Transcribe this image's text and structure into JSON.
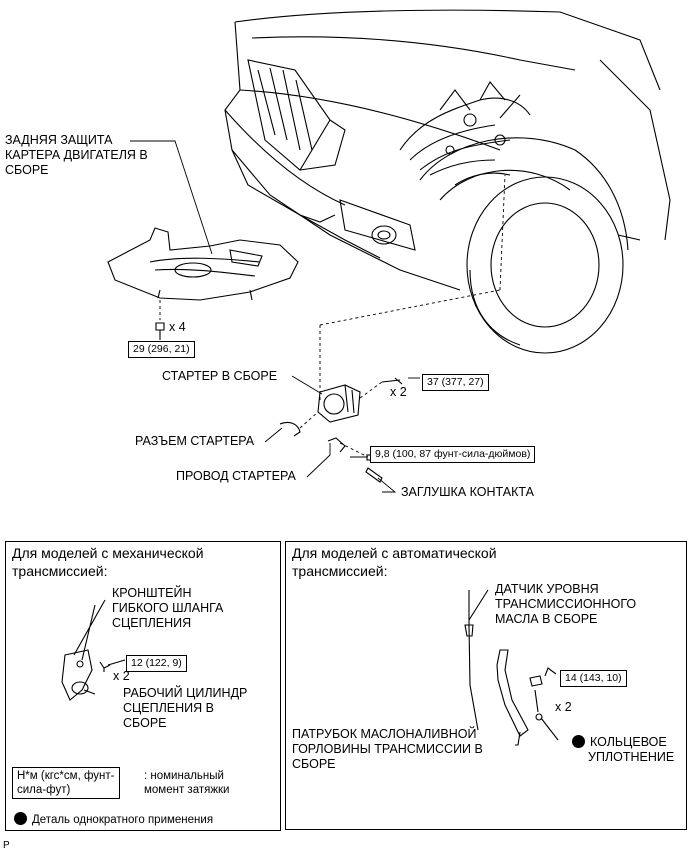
{
  "labels": {
    "rear_cover_l1": "ЗАДНЯЯ ЗАЩИТА",
    "rear_cover_l2": "КАРТЕРА ДВИГАТЕЛЯ В",
    "rear_cover_l3": "СБОРЕ",
    "starter": "СТАРТЕР В СБОРЕ",
    "starter_connector": "РАЗЪЕМ СТАРТЕРА",
    "starter_wire": "ПРОВОД СТАРТЕРА",
    "terminal_cap": "ЗАГЛУШКА КОНТАКТА"
  },
  "torques": {
    "t29": "29 (296, 21)",
    "t37": "37 (377, 27)",
    "t98": "9,8 (100, 87 фунт-сила-дюймов)",
    "t12": "12 (122, 9)",
    "t14": "14 (143, 10)"
  },
  "counts": {
    "x4": "x 4",
    "x2_starter": "x 2",
    "x2_manual": "x 2",
    "x2_auto": "x 2"
  },
  "manual_panel": {
    "title_l1": "Для моделей с механической",
    "title_l2": "трансмиссией:",
    "bracket_l1": "КРОНШТЕЙН",
    "bracket_l2": "ГИБКОГО ШЛАНГА",
    "bracket_l3": "СЦЕПЛЕНИЯ",
    "cylinder_l1": "РАБОЧИЙ ЦИЛИНДР",
    "cylinder_l2": "СЦЕПЛЕНИЯ В",
    "cylinder_l3": "СБОРЕ"
  },
  "auto_panel": {
    "title_l1": "Для моделей с автоматической",
    "title_l2": "трансмиссией:",
    "gauge_l1": "ДАТЧИК УРОВНЯ",
    "gauge_l2": "ТРАНСМИССИОННОГО",
    "gauge_l3": "МАСЛА В СБОРЕ",
    "pipe_l1": "ПАТРУБОК МАСЛОНАЛИВНОЙ",
    "pipe_l2": "ГОРЛОВИНЫ ТРАНСМИССИИ В",
    "pipe_l3": "СБОРЕ",
    "oring_l1": "КОЛЬЦЕВОЕ",
    "oring_l2": "УПЛОТНЕНИЕ"
  },
  "legend": {
    "unit_l1": "Н*м (кгс*см, фунт-",
    "unit_l2": "сила-фут)",
    "desc_l1": ": номинальный",
    "desc_l2": "момент затяжки",
    "nonreuse": "Деталь однократного применения"
  },
  "footer_code": "P"
}
